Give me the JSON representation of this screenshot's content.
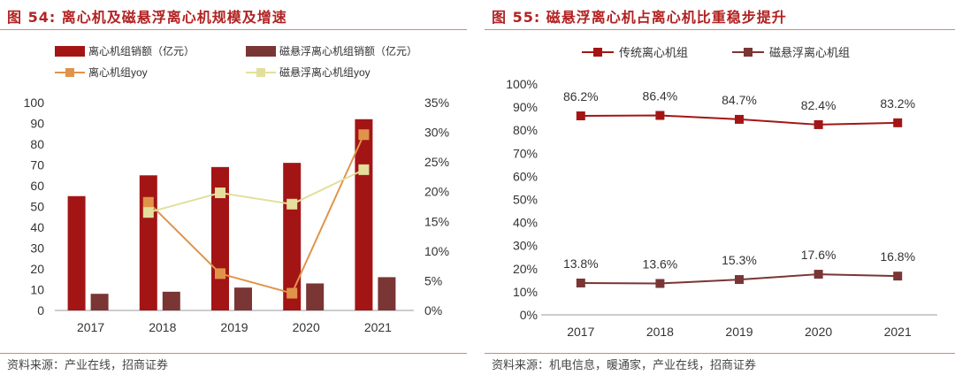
{
  "left": {
    "title": "图 54:  离心机及磁悬浮离心机规模及增速",
    "source": "资料来源：产业在线，招商证券",
    "chart_data": {
      "type": "bar",
      "categories": [
        "2017",
        "2018",
        "2019",
        "2020",
        "2021"
      ],
      "ylim": [
        0,
        100
      ],
      "yticks": [
        "0",
        "10",
        "20",
        "30",
        "40",
        "50",
        "60",
        "70",
        "80",
        "90",
        "100"
      ],
      "y2lim": [
        0,
        35
      ],
      "y2ticks": [
        "0%",
        "5%",
        "10%",
        "15%",
        "20%",
        "25%",
        "30%",
        "35%"
      ],
      "bar_series": [
        {
          "name": "离心机组销额（亿元）",
          "color": "#a31515",
          "values": [
            55,
            65,
            69,
            71,
            92
          ]
        },
        {
          "name": "磁悬浮离心机组销额（亿元）",
          "color": "#7a3535",
          "values": [
            8,
            9,
            11,
            13,
            16
          ]
        }
      ],
      "line_series": [
        {
          "name": "离心机组yoy",
          "color": "#e0944a",
          "values": [
            null,
            18.2,
            6.2,
            2.9,
            29.6
          ]
        },
        {
          "name": "磁悬浮离心机组yoy",
          "color": "#e3df9c",
          "values": [
            null,
            16.5,
            19.8,
            17.9,
            23.7
          ]
        }
      ],
      "legend": "top"
    }
  },
  "right": {
    "title": "图 55:  磁悬浮离心机占离心机比重稳步提升",
    "source": "资料来源：机电信息，暖通家，产业在线，招商证券",
    "chart_data": {
      "type": "line",
      "categories": [
        "2017",
        "2018",
        "2019",
        "2020",
        "2021"
      ],
      "ylim": [
        0,
        100
      ],
      "yticks": [
        "0%",
        "10%",
        "20%",
        "30%",
        "40%",
        "50%",
        "60%",
        "70%",
        "80%",
        "90%",
        "100%"
      ],
      "series": [
        {
          "name": "传统离心机组",
          "color": "#a31515",
          "values": [
            86.2,
            86.4,
            84.7,
            82.4,
            83.2
          ],
          "labels": [
            "86.2%",
            "86.4%",
            "84.7%",
            "82.4%",
            "83.2%"
          ]
        },
        {
          "name": "磁悬浮离心机组",
          "color": "#7a3535",
          "values": [
            13.8,
            13.6,
            15.3,
            17.6,
            16.8
          ],
          "labels": [
            "13.8%",
            "13.6%",
            "15.3%",
            "17.6%",
            "16.8%"
          ]
        }
      ],
      "legend": "top"
    }
  }
}
